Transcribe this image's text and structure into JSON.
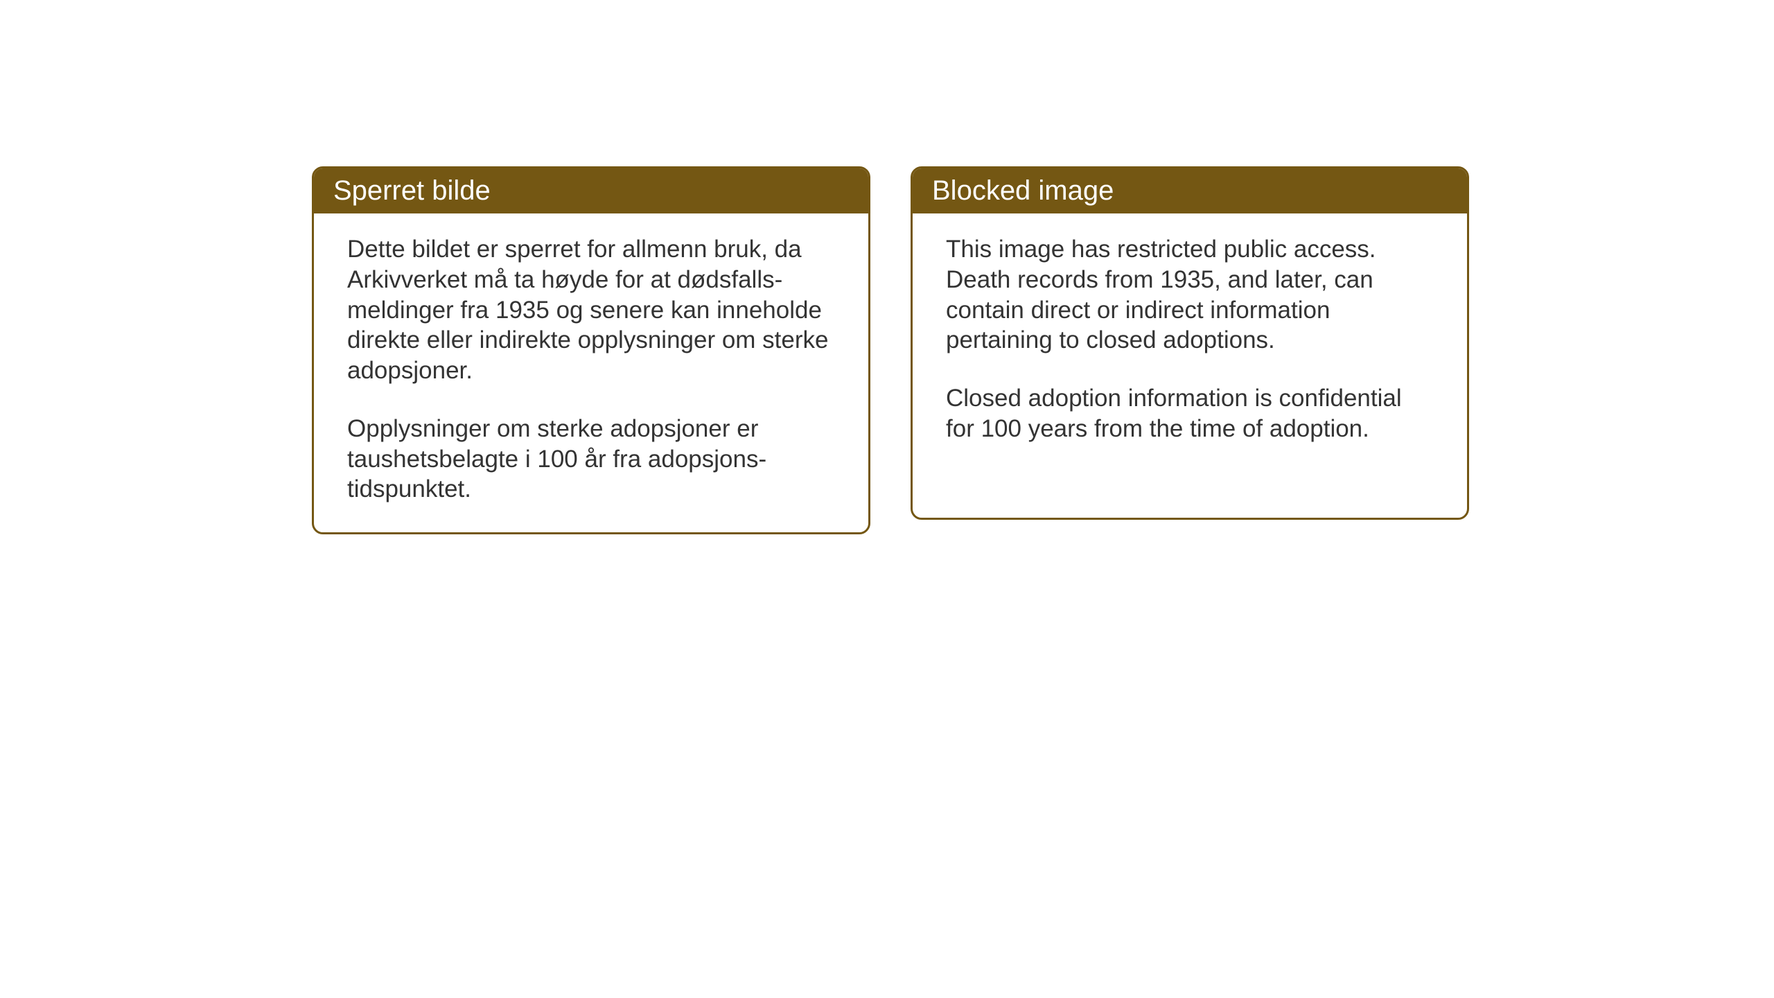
{
  "layout": {
    "background_color": "#ffffff",
    "card_border_color": "#745713",
    "header_bg_color": "#745713",
    "header_text_color": "#ffffff",
    "body_text_color": "#333333",
    "header_fontsize": 40,
    "body_fontsize": 35
  },
  "cards": {
    "norwegian": {
      "title": "Sperret bilde",
      "paragraph1": "Dette bildet er sperret for allmenn bruk, da Arkivverket må ta høyde for at dødsfalls-meldinger fra 1935 og senere kan inneholde direkte eller indirekte opplysninger om sterke adopsjoner.",
      "paragraph2": "Opplysninger om sterke adopsjoner er taushetsbelagte i 100 år fra adopsjons-tidspunktet."
    },
    "english": {
      "title": "Blocked image",
      "paragraph1": "This image has restricted public access. Death records from 1935, and later, can contain direct or indirect information pertaining to closed adoptions.",
      "paragraph2": "Closed adoption information is confidential for 100 years from the time of adoption."
    }
  }
}
